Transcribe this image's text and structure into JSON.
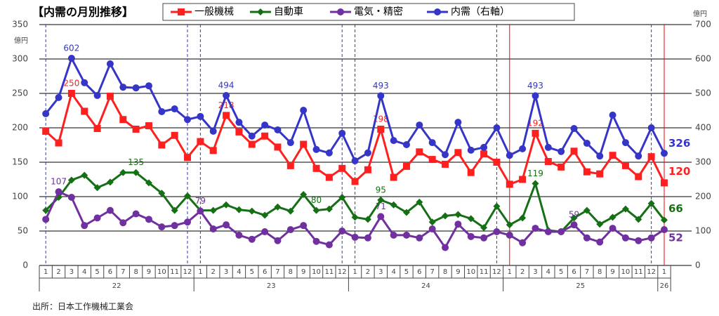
{
  "chart_data": {
    "type": "line",
    "title": "【内需の月別推移】",
    "y_axis_label": "億円",
    "y2_axis_label": "億円",
    "source": "出所：日本工作機械工業会",
    "categories": [
      "1",
      "2",
      "3",
      "4",
      "5",
      "6",
      "7",
      "8",
      "9",
      "10",
      "11",
      "12",
      "1",
      "2",
      "3",
      "4",
      "5",
      "6",
      "7",
      "8",
      "9",
      "10",
      "11",
      "12",
      "1",
      "2",
      "3",
      "4",
      "5",
      "6",
      "7",
      "8",
      "9",
      "10",
      "11",
      "12",
      "1",
      "2",
      "3",
      "4",
      "5",
      "6",
      "7",
      "8",
      "9",
      "10",
      "11",
      "12",
      "1"
    ],
    "year_groups": [
      "22",
      "23",
      "24",
      "25",
      "26"
    ],
    "ylim": [
      0,
      350
    ],
    "yticks": [
      0,
      50,
      100,
      150,
      200,
      250,
      300,
      350
    ],
    "y2lim": [
      0,
      700
    ],
    "y2ticks": [
      0,
      100,
      200,
      300,
      400,
      500,
      600,
      700
    ],
    "grid": true,
    "series": [
      {
        "name": "一般機械",
        "color": "#ff1f1f",
        "marker": "square",
        "label_indices": [
          2,
          14,
          26,
          38,
          48
        ],
        "values": [
          195,
          178,
          250,
          224,
          199,
          246,
          212,
          198,
          203,
          175,
          189,
          157,
          180,
          167,
          218,
          194,
          176,
          188,
          172,
          145,
          176,
          141,
          128,
          141,
          122,
          139,
          198,
          128,
          144,
          165,
          154,
          147,
          164,
          135,
          162,
          150,
          118,
          125,
          192,
          151,
          143,
          166,
          136,
          133,
          160,
          145,
          129,
          158,
          120
        ]
      },
      {
        "name": "自動車",
        "color": "#157015",
        "marker": "diamond",
        "label_indices": [
          7,
          21,
          26,
          38,
          48
        ],
        "values": [
          80,
          99,
          124,
          131,
          113,
          121,
          135,
          135,
          120,
          105,
          80,
          101,
          80,
          80,
          88,
          81,
          79,
          73,
          85,
          79,
          103,
          80,
          82,
          99,
          70,
          67,
          95,
          88,
          77,
          92,
          63,
          72,
          74,
          68,
          55,
          86,
          59,
          69,
          119,
          51,
          49,
          69,
          80,
          60,
          70,
          82,
          67,
          90,
          66
        ]
      },
      {
        "name": "電気・精密",
        "color": "#7030a0",
        "marker": "circle",
        "label_indices": [
          1,
          12,
          26,
          41,
          48
        ],
        "values": [
          67,
          107,
          99,
          58,
          69,
          80,
          62,
          75,
          67,
          56,
          58,
          63,
          79,
          53,
          59,
          44,
          38,
          49,
          36,
          52,
          58,
          35,
          30,
          50,
          41,
          40,
          71,
          44,
          44,
          40,
          53,
          26,
          60,
          42,
          40,
          49,
          44,
          33,
          54,
          49,
          49,
          59,
          40,
          34,
          54,
          40,
          36,
          40,
          52
        ]
      },
      {
        "name": "内需（右軸）",
        "color": "#3535c8",
        "marker": "circle",
        "axis": "y2",
        "label_indices": [
          2,
          14,
          26,
          38,
          48
        ],
        "values": [
          441,
          488,
          602,
          531,
          494,
          586,
          518,
          516,
          522,
          447,
          455,
          424,
          433,
          390,
          494,
          416,
          376,
          408,
          394,
          357,
          451,
          337,
          327,
          384,
          304,
          327,
          493,
          363,
          351,
          408,
          357,
          322,
          416,
          335,
          343,
          400,
          320,
          339,
          493,
          343,
          331,
          398,
          355,
          318,
          437,
          357,
          318,
          400,
          326
        ]
      }
    ]
  }
}
